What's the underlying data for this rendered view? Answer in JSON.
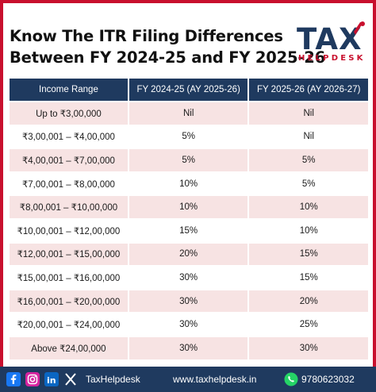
{
  "header": {
    "title_line1": "Know The ITR Filing Differences",
    "title_line2": "Between FY 2024-25 and FY 2025-26",
    "logo_text": "TAX",
    "logo_sub": "HELPDESK"
  },
  "table": {
    "headers": [
      "Income Range",
      "FY 2024-25 (AY 2025-26)",
      "FY 2025-26 (AY 2026-27)"
    ],
    "rows": [
      [
        "Up to ₹3,00,000",
        "Nil",
        "Nil"
      ],
      [
        "₹3,00,001 – ₹4,00,000",
        "5%",
        "Nil"
      ],
      [
        "₹4,00,001 – ₹7,00,000",
        "5%",
        "5%"
      ],
      [
        "₹7,00,001 – ₹8,00,000",
        "10%",
        "5%"
      ],
      [
        "₹8,00,001 – ₹10,00,000",
        "10%",
        "10%"
      ],
      [
        "₹10,00,001 – ₹12,00,000",
        "15%",
        "10%"
      ],
      [
        "₹12,00,001 – ₹15,00,000",
        "20%",
        "15%"
      ],
      [
        "₹15,00,001 – ₹16,00,000",
        "30%",
        "15%"
      ],
      [
        "₹16,00,001 – ₹20,00,000",
        "30%",
        "20%"
      ],
      [
        "₹20,00,001 – ₹24,00,000",
        "30%",
        "25%"
      ],
      [
        "Above ₹24,00,000",
        "30%",
        "30%"
      ]
    ]
  },
  "footer": {
    "brand": "TaxHelpdesk",
    "website": "www.taxhelpdesk.in",
    "phone": "9780623032"
  },
  "colors": {
    "navy": "#1f3a5f",
    "red": "#c8102e",
    "row_pink": "#f7e3e3"
  },
  "icons": [
    "facebook-icon",
    "instagram-icon",
    "linkedin-icon",
    "x-icon",
    "whatsapp-icon"
  ]
}
